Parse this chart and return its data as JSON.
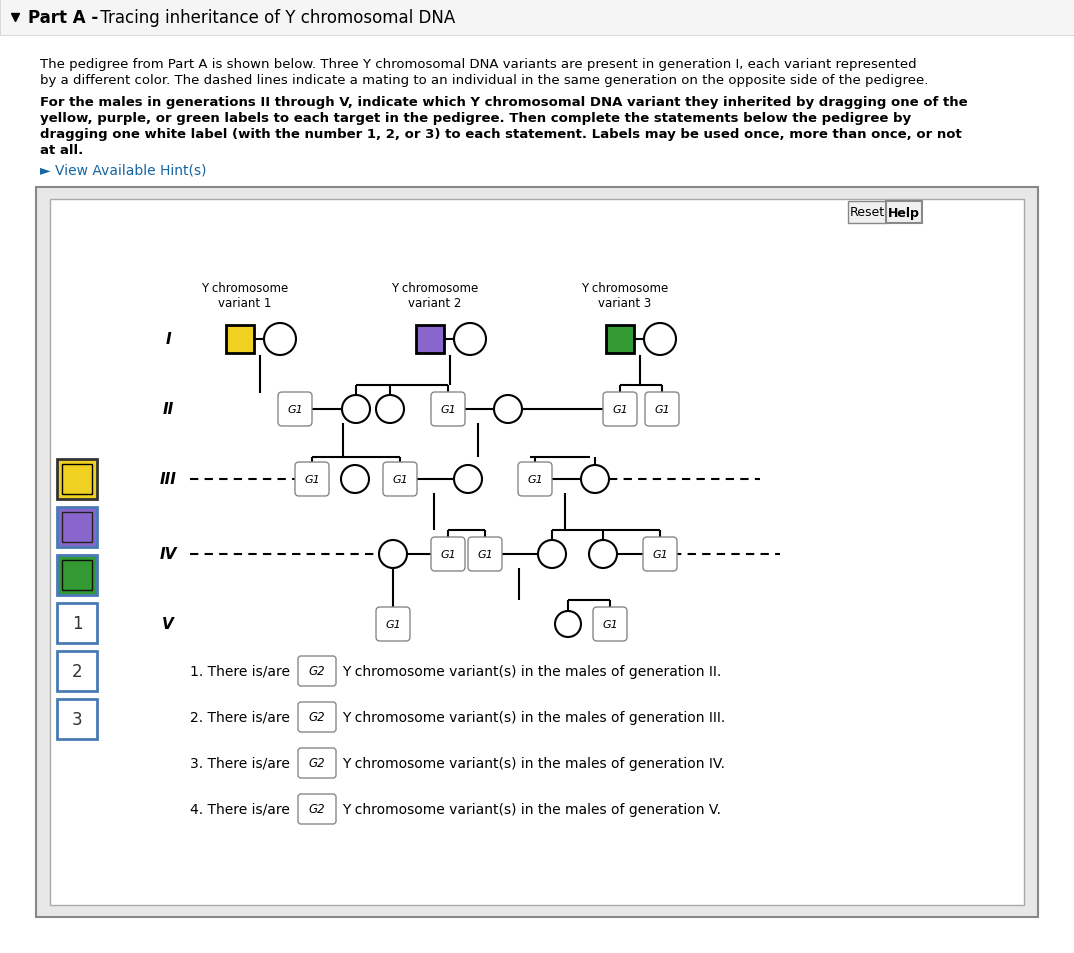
{
  "title_bold": "Part A -",
  "title_normal": " Tracing inheritance of Y chromosomal DNA",
  "desc1": "The pedigree from Part A is shown below. Three Y chromosomal DNA variants are present in generation I, each variant represented",
  "desc2": "by a different color. The dashed lines indicate a mating to an individual in the same generation on the opposite side of the pedigree.",
  "bold_lines": [
    "For the males in generations II through V, indicate which Y chromosomal DNA variant they inherited by dragging one of the",
    "yellow, purple, or green labels to each target in the pedigree. Then complete the statements below the pedigree by",
    "dragging one white label (with the number 1, 2, or 3) to each statement. Labels may be used once, more than once, or not",
    "at all."
  ],
  "hint_text": "► View Available Hint(s)",
  "var_labels": [
    "Y chromosome\nvariant 1",
    "Y chromosome\nvariant 2",
    "Y chromosome\nvariant 3"
  ],
  "gen_labels": [
    "I",
    "II",
    "III",
    "IV",
    "V"
  ],
  "yellow_color": "#F0D020",
  "purple_color": "#8866CC",
  "green_color": "#339933",
  "sidebar_label_border": "#4a7ab5",
  "statement_label": "G2",
  "statements_pre": [
    "1. There is/are",
    "2. There is/are",
    "3. There is/are",
    "4. There is/are"
  ],
  "statements_post": [
    "Y chromosome variant(s) in the males of generation II.",
    "Y chromosome variant(s) in the males of generation III.",
    "Y chromosome variant(s) in the males of generation IV.",
    "Y chromosome variant(s) in the males of generation V."
  ]
}
